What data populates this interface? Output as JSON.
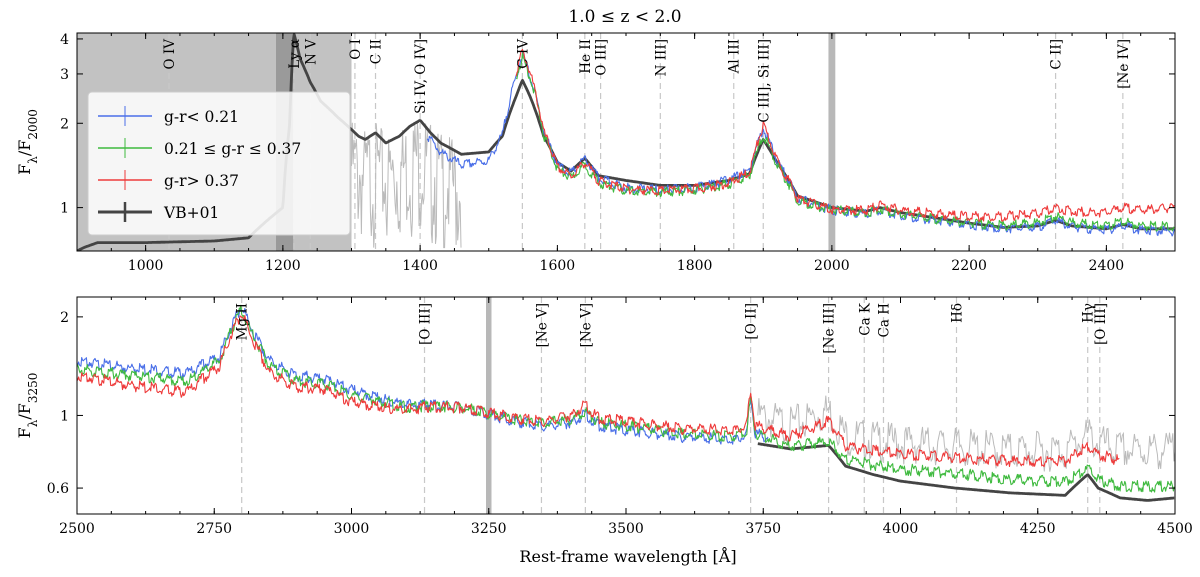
{
  "chart_data": [
    {
      "type": "line",
      "panel": "top",
      "title": "1.0 ≤ z < 2.0",
      "xlabel": "",
      "ylabel": "Fλ/F2000",
      "yscale": "log",
      "xlim": [
        900,
        2500
      ],
      "ylim": [
        0.7,
        4.2
      ],
      "xticks": [
        1000,
        1200,
        1400,
        1600,
        1800,
        2000,
        2200,
        2400
      ],
      "yticks": [
        1,
        2,
        3,
        4
      ],
      "grey_region": [
        900,
        1300
      ],
      "norm_band": [
        1995,
        2005
      ],
      "legend_position": "upper-left",
      "legend": [
        {
          "label": "g-r< 0.21",
          "color": "#4a6fe8"
        },
        {
          "label": "0.21 ≤ g-r ≤ 0.37",
          "color": "#3fba3f"
        },
        {
          "label": "g-r> 0.37",
          "color": "#ee3b3b"
        },
        {
          "label": "VB+01",
          "color": "#444444"
        }
      ],
      "lines": [
        {
          "label": "O IV",
          "x": 1034
        },
        {
          "label": "Ly α",
          "x": 1216
        },
        {
          "label": "N V",
          "x": 1240
        },
        {
          "label": "O I",
          "x": 1305
        },
        {
          "label": "C II",
          "x": 1335
        },
        {
          "label": "Si IV, O IV]",
          "x": 1400
        },
        {
          "label": "C IV",
          "x": 1549
        },
        {
          "label": "He II",
          "x": 1640
        },
        {
          "label": "O III]",
          "x": 1663
        },
        {
          "label": "N III]",
          "x": 1750
        },
        {
          "label": "Al III",
          "x": 1857
        },
        {
          "label": "C III], Si III]",
          "x": 1900
        },
        {
          "label": "C II]",
          "x": 2326
        },
        {
          "label": "[Ne IV]",
          "x": 2424
        }
      ],
      "series": [
        {
          "name": "VB+01",
          "x": [
            900,
            910,
            930,
            1000,
            1100,
            1150,
            1200,
            1210,
            1216,
            1225,
            1240,
            1255,
            1280,
            1300,
            1310,
            1320,
            1335,
            1350,
            1370,
            1385,
            1400,
            1415,
            1430,
            1460,
            1500,
            1520,
            1540,
            1549,
            1560,
            1580,
            1600,
            1620,
            1640,
            1660,
            1700,
            1750,
            1800,
            1850,
            1880,
            1900,
            1920,
            1950,
            2000,
            2050,
            2070,
            2100,
            2150,
            2200,
            2250,
            2300,
            2326,
            2350,
            2400,
            2424,
            2450,
            2500
          ],
          "y": [
            0.7,
            0.72,
            0.75,
            0.75,
            0.76,
            0.78,
            1.0,
            2.0,
            4.2,
            3.4,
            2.8,
            2.4,
            2.1,
            1.9,
            1.8,
            1.75,
            1.85,
            1.7,
            1.8,
            1.95,
            2.05,
            1.85,
            1.7,
            1.55,
            1.58,
            1.8,
            2.5,
            2.85,
            2.5,
            1.8,
            1.45,
            1.35,
            1.5,
            1.3,
            1.25,
            1.2,
            1.2,
            1.25,
            1.32,
            1.75,
            1.45,
            1.1,
            1.0,
            0.97,
            1.0,
            0.96,
            0.92,
            0.88,
            0.85,
            0.86,
            0.9,
            0.86,
            0.84,
            0.87,
            0.84,
            0.84
          ]
        },
        {
          "name": "g-r< 0.21",
          "x": [
            1410,
            1430,
            1460,
            1500,
            1520,
            1540,
            1549,
            1560,
            1580,
            1600,
            1620,
            1640,
            1660,
            1700,
            1750,
            1800,
            1850,
            1880,
            1900,
            1920,
            1950,
            2000,
            2050,
            2070,
            2100,
            2150,
            2200,
            2250,
            2300,
            2326,
            2350,
            2400,
            2424,
            2450,
            2500
          ],
          "y": [
            1.85,
            1.6,
            1.45,
            1.5,
            1.85,
            3.0,
            3.6,
            3.0,
            1.9,
            1.45,
            1.35,
            1.52,
            1.3,
            1.2,
            1.18,
            1.2,
            1.28,
            1.38,
            1.95,
            1.5,
            1.1,
            1.0,
            0.97,
            1.0,
            0.96,
            0.92,
            0.89,
            0.86,
            0.87,
            0.92,
            0.87,
            0.85,
            0.88,
            0.85,
            0.84
          ]
        },
        {
          "name": "0.21 ≤ g-r ≤ 0.37",
          "x": [
            1540,
            1549,
            1560,
            1580,
            1600,
            1620,
            1640,
            1660,
            1700,
            1750,
            1800,
            1850,
            1880,
            1900,
            1920,
            1950,
            2000,
            2050,
            2070,
            2100,
            2150,
            2200,
            2250,
            2300,
            2326,
            2350,
            2400,
            2424,
            2450,
            2500
          ],
          "y": [
            3.0,
            3.5,
            3.0,
            1.85,
            1.4,
            1.3,
            1.45,
            1.25,
            1.17,
            1.16,
            1.18,
            1.24,
            1.33,
            1.85,
            1.45,
            1.08,
            1.0,
            0.98,
            1.01,
            0.97,
            0.93,
            0.9,
            0.88,
            0.9,
            0.95,
            0.9,
            0.88,
            0.91,
            0.88,
            0.87
          ]
        },
        {
          "name": "g-r> 0.37",
          "x": [
            1540,
            1549,
            1560,
            1580,
            1600,
            1620,
            1640,
            1660,
            1700,
            1750,
            1800,
            1850,
            1880,
            1900,
            1920,
            1950,
            2000,
            2050,
            2070,
            2100,
            2150,
            2200,
            2250,
            2300,
            2326,
            2350,
            2400,
            2424,
            2450,
            2500
          ],
          "y": [
            3.1,
            3.7,
            3.1,
            1.9,
            1.42,
            1.32,
            1.48,
            1.27,
            1.19,
            1.17,
            1.19,
            1.25,
            1.36,
            2.0,
            1.5,
            1.1,
            1.0,
            1.0,
            1.04,
            1.0,
            0.97,
            0.95,
            0.95,
            0.97,
            1.02,
            0.99,
            0.98,
            1.02,
            1.0,
            1.02
          ]
        }
      ]
    },
    {
      "type": "line",
      "panel": "bottom",
      "xlabel": "Rest-frame wavelength [Å]",
      "ylabel": "Fλ/F3250",
      "yscale": "log",
      "xlim": [
        2500,
        4500
      ],
      "ylim": [
        0.5,
        2.3
      ],
      "xticks": [
        2500,
        2750,
        3000,
        3250,
        3500,
        3750,
        4000,
        4250,
        4500
      ],
      "yticks": [
        0.6,
        1,
        2
      ],
      "norm_band": [
        3245,
        3255
      ],
      "lines": [
        {
          "label": "Mg II",
          "x": 2800
        },
        {
          "label": "[O III]",
          "x": 3133
        },
        {
          "label": "[Ne V]",
          "x": 3346
        },
        {
          "label": "[Ne V]",
          "x": 3426
        },
        {
          "label": "[O II]",
          "x": 3727
        },
        {
          "label": "[Ne III]",
          "x": 3869
        },
        {
          "label": "Ca K",
          "x": 3934
        },
        {
          "label": "Ca H",
          "x": 3969
        },
        {
          "label": "Hδ",
          "x": 4102
        },
        {
          "label": "Hγ",
          "x": 4341
        },
        {
          "label": "[O III]",
          "x": 4363
        }
      ],
      "series": [
        {
          "name": "g-r< 0.21",
          "x": [
            2500,
            2600,
            2700,
            2760,
            2790,
            2800,
            2815,
            2850,
            2900,
            2950,
            3000,
            3100,
            3130,
            3200,
            3300,
            3350,
            3400,
            3426,
            3450,
            3500,
            3600,
            3700,
            3720,
            3727,
            3735,
            3760
          ],
          "y": [
            1.5,
            1.42,
            1.37,
            1.55,
            2.05,
            2.2,
            1.9,
            1.5,
            1.35,
            1.32,
            1.22,
            1.1,
            1.1,
            1.08,
            0.98,
            0.95,
            0.97,
            1.03,
            0.95,
            0.92,
            0.88,
            0.86,
            0.9,
            1.15,
            0.9,
            0.87
          ]
        },
        {
          "name": "0.21 ≤ g-r ≤ 0.37",
          "x": [
            2500,
            2600,
            2700,
            2760,
            2790,
            2800,
            2815,
            2850,
            2900,
            2950,
            3000,
            3100,
            3130,
            3200,
            3300,
            3350,
            3400,
            3426,
            3450,
            3500,
            3600,
            3700,
            3720,
            3727,
            3735,
            3800,
            3869,
            3900,
            3950,
            4000,
            4100,
            4200,
            4300,
            4341,
            4360,
            4400,
            4500
          ],
          "y": [
            1.42,
            1.35,
            1.3,
            1.5,
            2.0,
            2.15,
            1.85,
            1.45,
            1.3,
            1.28,
            1.18,
            1.08,
            1.09,
            1.08,
            0.99,
            0.97,
            0.99,
            1.05,
            0.97,
            0.95,
            0.9,
            0.88,
            0.92,
            1.15,
            0.9,
            0.82,
            0.85,
            0.75,
            0.72,
            0.7,
            0.68,
            0.65,
            0.64,
            0.7,
            0.65,
            0.62,
            0.62
          ]
        },
        {
          "name": "g-r> 0.37",
          "x": [
            2500,
            2600,
            2700,
            2760,
            2790,
            2800,
            2815,
            2850,
            2900,
            2950,
            3000,
            3100,
            3130,
            3200,
            3300,
            3350,
            3400,
            3426,
            3450,
            3500,
            3600,
            3700,
            3720,
            3727,
            3735,
            3800,
            3869,
            3900,
            3950,
            4000,
            4100,
            4200,
            4300,
            4341,
            4360,
            4400
          ],
          "y": [
            1.35,
            1.26,
            1.2,
            1.45,
            1.95,
            2.1,
            1.8,
            1.38,
            1.25,
            1.23,
            1.12,
            1.06,
            1.08,
            1.08,
            1.0,
            0.98,
            1.02,
            1.1,
            1.0,
            0.98,
            0.93,
            0.92,
            0.96,
            1.2,
            0.95,
            0.88,
            0.98,
            0.82,
            0.8,
            0.78,
            0.76,
            0.74,
            0.74,
            0.82,
            0.78,
            0.74
          ]
        },
        {
          "name": "VB+01",
          "x": [
            3740,
            3800,
            3869,
            3900,
            3950,
            4000,
            4100,
            4200,
            4300,
            4341,
            4360,
            4400,
            4450,
            4500
          ],
          "y": [
            0.82,
            0.79,
            0.81,
            0.7,
            0.66,
            0.63,
            0.6,
            0.58,
            0.57,
            0.66,
            0.6,
            0.56,
            0.55,
            0.56
          ]
        }
      ]
    }
  ]
}
